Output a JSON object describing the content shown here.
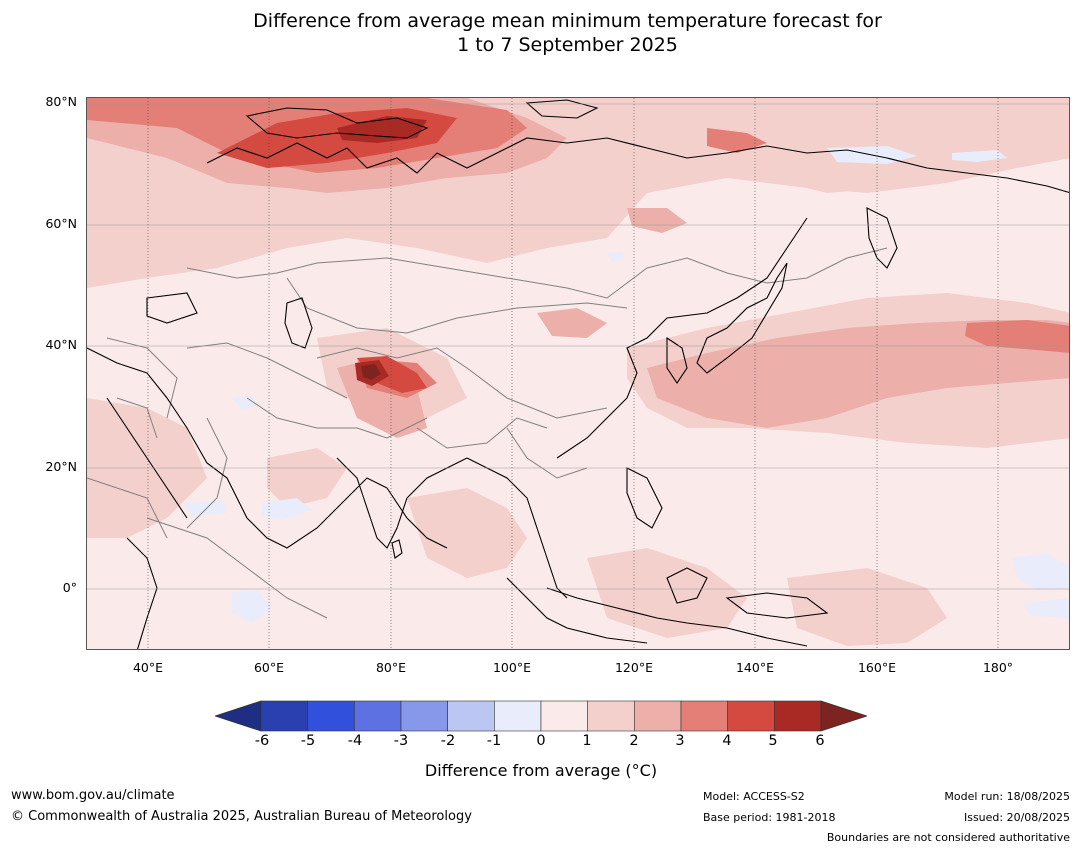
{
  "title": {
    "line1": "Difference from average mean minimum temperature forecast for",
    "line2": "1 to 7 September 2025"
  },
  "map": {
    "lat_ticks": [
      "80°N",
      "60°N",
      "40°N",
      "20°N",
      "0°"
    ],
    "lon_ticks": [
      "40°E",
      "60°E",
      "80°E",
      "100°E",
      "120°E",
      "140°E",
      "160°E",
      "180°"
    ],
    "extent": {
      "lon": [
        30,
        192
      ],
      "lat": [
        -10,
        81
      ]
    },
    "colors": {
      "anom_0_1": "#fbeaea",
      "anom_1_2": "#f4d0cd",
      "anom_2_3": "#ecafa9",
      "anom_3_4": "#e37f77",
      "anom_4_5": "#d44a40",
      "anom_5_6": "#a92a25",
      "anom_gt6": "#7d2420",
      "anom_m1_0": "#e8ecfb",
      "coastline": "#000000",
      "borders": "#808080"
    }
  },
  "colorbar": {
    "ticks": [
      "-6",
      "-5",
      "-4",
      "-3",
      "-2",
      "-1",
      "0",
      "1",
      "2",
      "3",
      "4",
      "5",
      "6"
    ],
    "colors": [
      "#2a3fb0",
      "#3150dc",
      "#5e71e2",
      "#8797ea",
      "#bcc6f3",
      "#e8ecfb",
      "#fbeaea",
      "#f4d0cd",
      "#ecafa9",
      "#e37f77",
      "#d44a40",
      "#a92a25"
    ],
    "under_color": "#1e2e82",
    "over_color": "#7d2420",
    "label": "Difference from average (°C)"
  },
  "footer": {
    "website": "www.bom.gov.au/climate",
    "copyright": "© Commonwealth of Australia 2025, Australian Bureau of Meteorology",
    "model": "Model: ACCESS-S2",
    "base_period": "Base period: 1981-2018",
    "model_run": "Model run: 18/08/2025",
    "issued": "Issued: 20/08/2025",
    "disclaimer": "Boundaries are not considered authoritative"
  }
}
